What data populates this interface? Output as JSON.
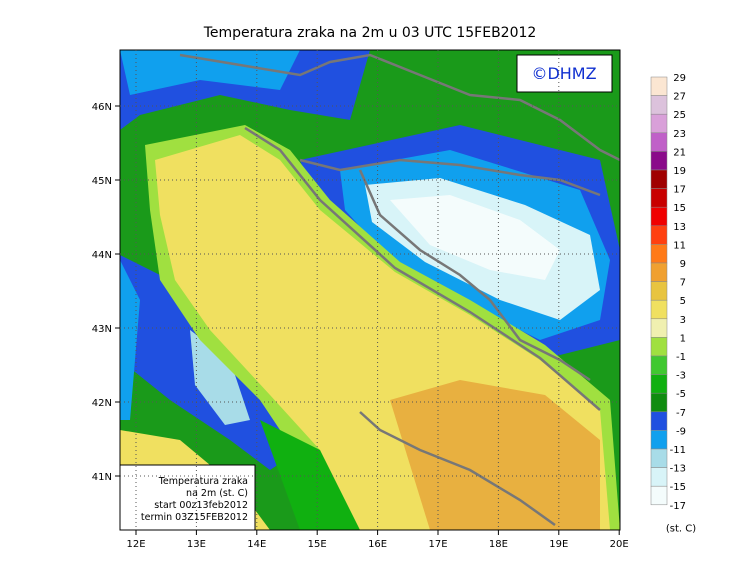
{
  "header": {
    "title": "Temperatura zraka na 2m u 03 UTC 15FEB2012"
  },
  "logo": "©DHMZ",
  "map": {
    "lon_ticks": [
      "12E",
      "13E",
      "14E",
      "15E",
      "16E",
      "17E",
      "18E",
      "19E",
      "20E"
    ],
    "lat_ticks": [
      "46N",
      "45N",
      "44N",
      "43N",
      "42N",
      "41N"
    ]
  },
  "colorbar": {
    "labels": [
      29,
      27,
      25,
      23,
      21,
      19,
      17,
      15,
      13,
      11,
      9,
      7,
      5,
      3,
      1,
      -1,
      -3,
      -5,
      -7,
      -9,
      -11,
      -13,
      -15,
      -17
    ],
    "colors": [
      "#fbe6d2",
      "#dcc2dc",
      "#d9a0d9",
      "#c060c8",
      "#8a0a8a",
      "#a00000",
      "#c80000",
      "#f00000",
      "#ff4010",
      "#ff7a18",
      "#f0a030",
      "#e8c440",
      "#f0e060",
      "#f0f0b0",
      "#a0e040",
      "#40c830",
      "#10b010",
      "#108c10",
      "#2050e0",
      "#10a0ee",
      "#a8dce8",
      "#d8f4f8",
      "#f4fcfc"
    ],
    "unit": "(st. C)"
  },
  "info_box": {
    "lines": [
      "Temperatura zraka",
      "na 2m (st. C)",
      "start 00z13feb2012",
      "termin 03Z15FEB2012"
    ]
  }
}
